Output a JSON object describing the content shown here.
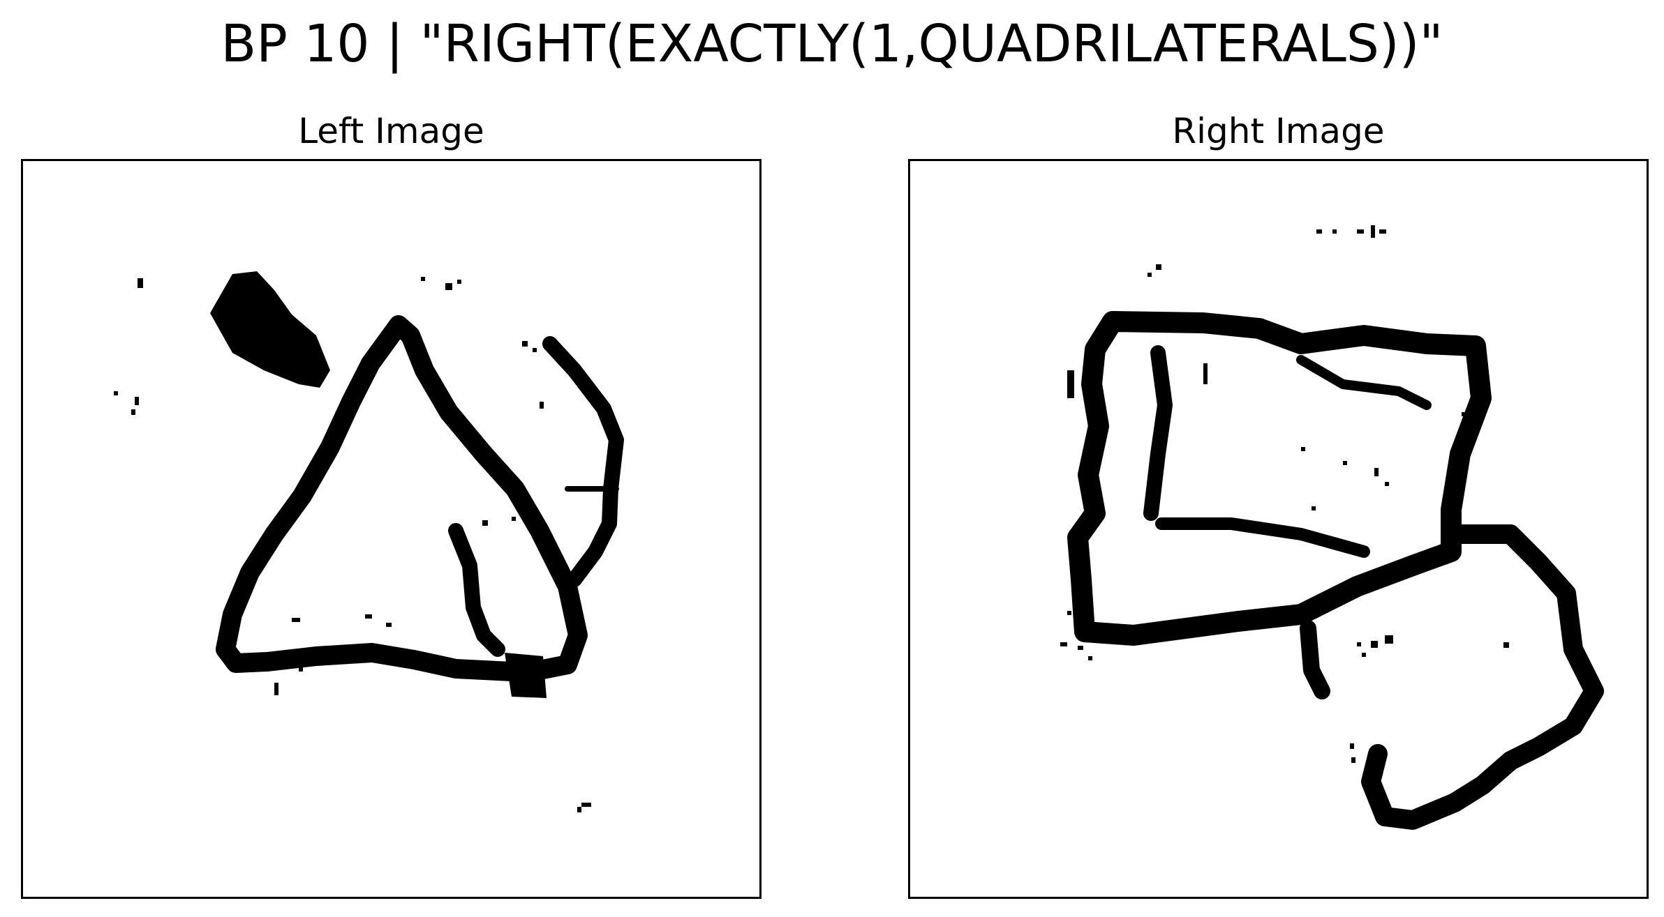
{
  "figure": {
    "title": "BP 10 | \"RIGHT(EXACTLY(1,QUADRILATERALS))\"",
    "ink_color": "#000000",
    "background_color": "#ffffff"
  },
  "panels": [
    {
      "title": "Left Image",
      "content": "noisy hand-drawn triangle outline with scattered noise specks"
    },
    {
      "title": "Right Image",
      "content": "noisy hand-drawn quadrilateral overlapping a second irregular outline with scattered noise specks"
    }
  ]
}
